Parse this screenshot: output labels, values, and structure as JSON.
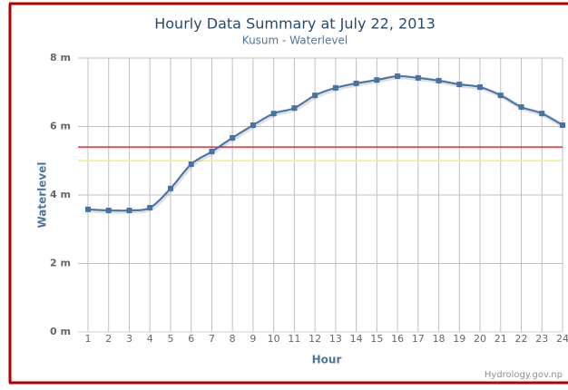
{
  "chart_data": {
    "type": "spline",
    "title": "Hourly Data Summary at July 22, 2013",
    "subtitle": "Kusum - Waterlevel",
    "x_label": "Hour",
    "y_label": "Waterlevel",
    "credit": "Hydrology.gov.np",
    "categories": [
      1,
      2,
      3,
      4,
      5,
      6,
      7,
      8,
      9,
      10,
      11,
      12,
      13,
      14,
      15,
      16,
      17,
      18,
      19,
      20,
      21,
      22,
      23,
      24
    ],
    "values": [
      3.58,
      3.55,
      3.55,
      3.63,
      4.19,
      4.9,
      5.27,
      5.67,
      6.04,
      6.38,
      6.54,
      6.91,
      7.13,
      7.26,
      7.36,
      7.47,
      7.42,
      7.34,
      7.23,
      7.15,
      6.91,
      6.57,
      6.38,
      6.04
    ],
    "color": "#4572a7",
    "ylim": [
      0,
      8
    ],
    "yticks": [
      {
        "value": 0,
        "label": "0 m"
      },
      {
        "value": 2,
        "label": "2 m"
      },
      {
        "value": 4,
        "label": "4 m"
      },
      {
        "value": 6,
        "label": "6 m"
      },
      {
        "value": 8,
        "label": "8 m"
      }
    ],
    "plot_lines": [
      {
        "value": 5.4,
        "color": "#e03030"
      },
      {
        "value": 5.0,
        "color": "#f5f070"
      }
    ],
    "grid": true
  }
}
